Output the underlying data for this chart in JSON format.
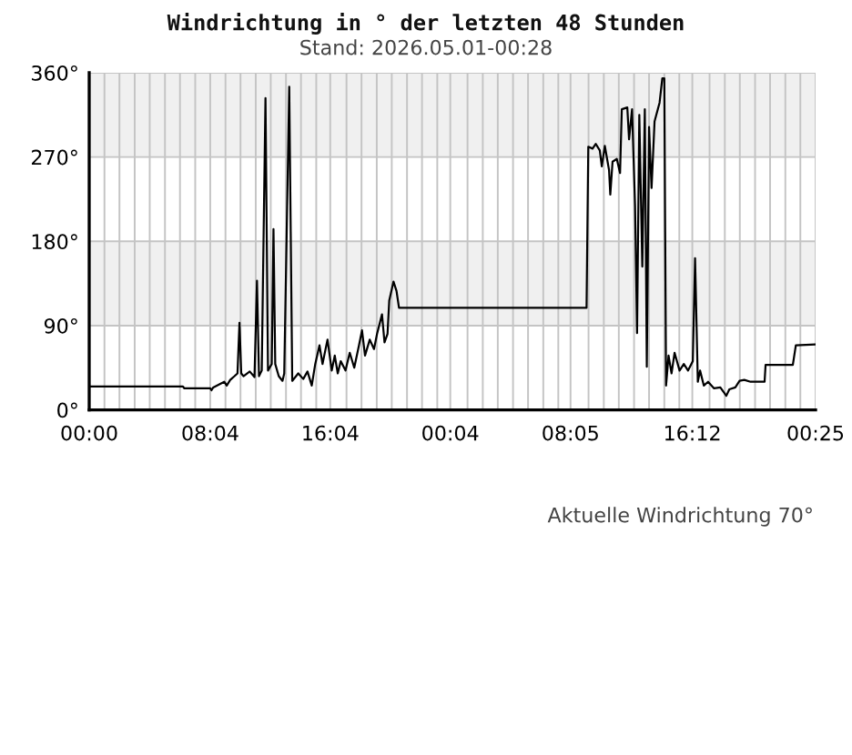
{
  "chart_data": {
    "type": "line",
    "title": "Windrichtung in ° der letzten 48 Stunden",
    "subtitle": "Stand: 2026.05.01-00:28",
    "annotations": [
      "Aktuelle Windrichtung 70°"
    ],
    "x": [
      "2026-04-29T00:00",
      "2026-04-29T06:15",
      "2026-04-29T06:20",
      "2026-04-29T08:04",
      "2026-04-29T08:09",
      "2026-04-29T08:16",
      "2026-04-29T09:00",
      "2026-04-29T09:10",
      "2026-04-29T09:24",
      "2026-04-29T09:41",
      "2026-04-29T09:53",
      "2026-04-29T10:01",
      "2026-04-29T10:08",
      "2026-04-29T10:17",
      "2026-04-29T10:42",
      "2026-04-29T11:01",
      "2026-04-29T11:11",
      "2026-04-29T11:19",
      "2026-04-29T11:30",
      "2026-04-29T11:45",
      "2026-04-29T11:55",
      "2026-04-29T12:10",
      "2026-04-29T12:17",
      "2026-04-29T12:24",
      "2026-04-29T12:38",
      "2026-04-29T12:53",
      "2026-04-29T13:00",
      "2026-04-29T13:20",
      "2026-04-29T13:32",
      "2026-04-29T13:56",
      "2026-04-29T14:16",
      "2026-04-29T14:33",
      "2026-04-29T14:50",
      "2026-04-29T15:04",
      "2026-04-29T15:21",
      "2026-04-29T15:33",
      "2026-04-29T15:53",
      "2026-04-29T16:10",
      "2026-04-29T16:22",
      "2026-04-29T16:34",
      "2026-04-29T16:46",
      "2026-04-29T17:05",
      "2026-04-29T17:22",
      "2026-04-29T17:40",
      "2026-04-29T17:59",
      "2026-04-29T18:11",
      "2026-04-29T18:23",
      "2026-04-29T18:42",
      "2026-04-29T18:59",
      "2026-04-29T19:11",
      "2026-04-29T19:31",
      "2026-04-29T19:41",
      "2026-04-29T19:53",
      "2026-04-29T20:00",
      "2026-04-29T20:17",
      "2026-04-29T20:29",
      "2026-04-29T20:39",
      "2026-04-30T09:09",
      "2026-04-30T09:16",
      "2026-04-30T09:33",
      "2026-04-30T09:46",
      "2026-04-30T10:02",
      "2026-04-30T10:10",
      "2026-04-30T10:22",
      "2026-04-30T10:39",
      "2026-04-30T10:44",
      "2026-04-30T10:53",
      "2026-04-30T11:10",
      "2026-04-30T11:23",
      "2026-04-30T11:30",
      "2026-04-30T11:52",
      "2026-04-30T11:59",
      "2026-04-30T12:11",
      "2026-04-30T12:23",
      "2026-04-30T12:31",
      "2026-04-30T12:40",
      "2026-04-30T12:52",
      "2026-04-30T13:02",
      "2026-04-30T13:10",
      "2026-04-30T13:19",
      "2026-04-30T13:29",
      "2026-04-30T13:41",
      "2026-04-30T13:48",
      "2026-04-30T14:01",
      "2026-04-30T14:12",
      "2026-04-30T14:20",
      "2026-04-30T14:27",
      "2026-04-30T14:37",
      "2026-04-30T14:49",
      "2026-04-30T15:01",
      "2026-04-30T15:21",
      "2026-04-30T15:38",
      "2026-04-30T15:55",
      "2026-04-30T16:14",
      "2026-04-30T16:23",
      "2026-04-30T16:34",
      "2026-04-30T16:43",
      "2026-04-30T16:58",
      "2026-04-30T17:15",
      "2026-04-30T17:39",
      "2026-04-30T18:04",
      "2026-04-30T18:28",
      "2026-04-30T18:40",
      "2026-04-30T19:04",
      "2026-04-30T19:21",
      "2026-04-30T19:40",
      "2026-04-30T20:05",
      "2026-04-30T21:01",
      "2026-04-30T21:05",
      "2026-04-30T22:54",
      "2026-04-30T23:06",
      "2026-05-01T00:25"
    ],
    "values": [
      25,
      25,
      23,
      23,
      21,
      24,
      30,
      26,
      32,
      36,
      39,
      93,
      39,
      36,
      41,
      35,
      138,
      36,
      42,
      333,
      42,
      49,
      193,
      49,
      36,
      31,
      39,
      345,
      31,
      39,
      33,
      41,
      26,
      49,
      69,
      49,
      75,
      42,
      58,
      39,
      52,
      42,
      61,
      45,
      69,
      85,
      58,
      75,
      65,
      81,
      102,
      72,
      81,
      117,
      137,
      127,
      109,
      109,
      281,
      279,
      284,
      277,
      260,
      282,
      256,
      230,
      265,
      268,
      253,
      321,
      323,
      289,
      321,
      218,
      82,
      315,
      153,
      321,
      46,
      302,
      237,
      308,
      315,
      328,
      354,
      354,
      26,
      58,
      39,
      61,
      42,
      49,
      42,
      52,
      162,
      30,
      42,
      26,
      30,
      23,
      24,
      15,
      22,
      24,
      31,
      32,
      30,
      30,
      48,
      48,
      69,
      70
    ],
    "color": "#000000",
    "xlim": [
      "2026-04-29T00:00",
      "2026-05-01T00:25"
    ],
    "xticks": [
      {
        "value": "2026-04-29T00:00",
        "label": "00:00"
      },
      {
        "value": "2026-04-29T01:01",
        "label": null
      },
      {
        "value": "2026-04-29T02:01",
        "label": null
      },
      {
        "value": "2026-04-29T03:02",
        "label": null
      },
      {
        "value": "2026-04-29T04:02",
        "label": null
      },
      {
        "value": "2026-04-29T05:03",
        "label": null
      },
      {
        "value": "2026-04-29T06:03",
        "label": null
      },
      {
        "value": "2026-04-29T07:04",
        "label": null
      },
      {
        "value": "2026-04-29T08:04",
        "label": "08:04"
      },
      {
        "value": "2026-04-29T09:05",
        "label": null
      },
      {
        "value": "2026-04-29T10:05",
        "label": null
      },
      {
        "value": "2026-04-29T11:06",
        "label": null
      },
      {
        "value": "2026-04-29T12:06",
        "label": null
      },
      {
        "value": "2026-04-29T13:07",
        "label": null
      },
      {
        "value": "2026-04-29T14:07",
        "label": null
      },
      {
        "value": "2026-04-29T15:08",
        "label": null
      },
      {
        "value": "2026-04-29T16:04",
        "label": "16:04"
      },
      {
        "value": "2026-04-29T17:09",
        "label": null
      },
      {
        "value": "2026-04-29T18:09",
        "label": null
      },
      {
        "value": "2026-04-29T19:10",
        "label": null
      },
      {
        "value": "2026-04-29T20:10",
        "label": null
      },
      {
        "value": "2026-04-29T21:11",
        "label": null
      },
      {
        "value": "2026-04-29T22:11",
        "label": null
      },
      {
        "value": "2026-04-29T23:12",
        "label": null
      },
      {
        "value": "2026-04-30T00:04",
        "label": "00:04"
      },
      {
        "value": "2026-04-30T01:13",
        "label": null
      },
      {
        "value": "2026-04-30T02:14",
        "label": null
      },
      {
        "value": "2026-04-30T03:14",
        "label": null
      },
      {
        "value": "2026-04-30T04:15",
        "label": null
      },
      {
        "value": "2026-04-30T05:15",
        "label": null
      },
      {
        "value": "2026-04-30T06:16",
        "label": null
      },
      {
        "value": "2026-04-30T07:16",
        "label": null
      },
      {
        "value": "2026-04-30T08:05",
        "label": "08:05"
      },
      {
        "value": "2026-04-30T09:17",
        "label": null
      },
      {
        "value": "2026-04-30T10:18",
        "label": null
      },
      {
        "value": "2026-04-30T11:18",
        "label": null
      },
      {
        "value": "2026-04-30T12:19",
        "label": null
      },
      {
        "value": "2026-04-30T13:19",
        "label": null
      },
      {
        "value": "2026-04-30T14:20",
        "label": null
      },
      {
        "value": "2026-04-30T15:20",
        "label": null
      },
      {
        "value": "2026-04-30T16:12",
        "label": "16:12"
      },
      {
        "value": "2026-04-30T17:21",
        "label": null
      },
      {
        "value": "2026-04-30T18:22",
        "label": null
      },
      {
        "value": "2026-04-30T19:22",
        "label": null
      },
      {
        "value": "2026-04-30T20:23",
        "label": null
      },
      {
        "value": "2026-04-30T21:23",
        "label": null
      },
      {
        "value": "2026-04-30T22:24",
        "label": null
      },
      {
        "value": "2026-04-30T23:24",
        "label": null
      },
      {
        "value": "2026-05-01T00:25",
        "label": "00:25"
      }
    ],
    "ylim": [
      0,
      360
    ],
    "yticks": [
      {
        "value": 0,
        "label": "0°"
      },
      {
        "value": 90,
        "label": "90°"
      },
      {
        "value": 180,
        "label": "180°"
      },
      {
        "value": 270,
        "label": "270°"
      },
      {
        "value": 360,
        "label": "360°"
      }
    ],
    "grid": true,
    "bands": [
      {
        "axis": "y",
        "from": 90,
        "to": 180,
        "color": "#f0f0f0"
      },
      {
        "axis": "y",
        "from": 270,
        "to": 360,
        "color": "#f0f0f0"
      }
    ]
  }
}
